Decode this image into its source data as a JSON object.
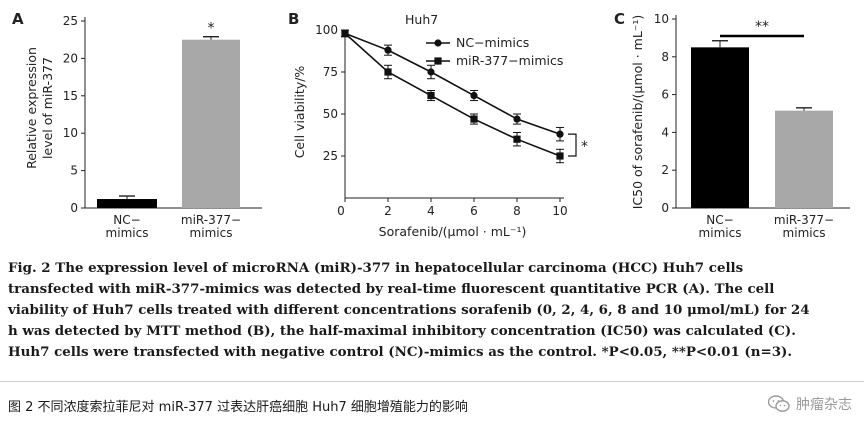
{
  "chart_data": [
    {
      "panel": "A",
      "type": "bar",
      "categories": [
        "NC-mimics",
        "miR-377-mimics"
      ],
      "category_labels": [
        [
          "NC−",
          "mimics"
        ],
        [
          "miR-377−",
          "mimics"
        ]
      ],
      "values": [
        1.2,
        22.5
      ],
      "errors": [
        0.4,
        0.4
      ],
      "colors": [
        "#000000",
        "#a8a8a8"
      ],
      "ylabel": [
        "Relative expression",
        "level of miR-377"
      ],
      "ylim": [
        0,
        25
      ],
      "yticks": [
        0,
        5,
        10,
        15,
        20,
        25
      ],
      "annotation": "*"
    },
    {
      "panel": "B",
      "type": "line",
      "title": "Huh7",
      "xlabel": "Sorafenib/(μmol · mL⁻¹)",
      "ylabel": "Cell viability/%",
      "x": [
        0,
        2,
        4,
        6,
        8,
        10
      ],
      "xticks": [
        0,
        2,
        4,
        6,
        8,
        10
      ],
      "yticks": [
        25,
        50,
        75,
        100
      ],
      "xlim": [
        0,
        10
      ],
      "ylim": [
        0,
        100
      ],
      "series": [
        {
          "name": "NC−mimics",
          "marker": "circle",
          "values": [
            98,
            88,
            75,
            61,
            47,
            38
          ],
          "errors": [
            2,
            3,
            4,
            3,
            3,
            4
          ]
        },
        {
          "name": "miR-377−mimics",
          "marker": "square",
          "values": [
            98,
            75,
            61,
            47,
            35,
            25
          ],
          "errors": [
            2,
            4,
            3,
            3,
            4,
            4
          ]
        }
      ],
      "annotation": "*"
    },
    {
      "panel": "C",
      "type": "bar",
      "categories": [
        "NC-mimics",
        "miR-377-mimics"
      ],
      "category_labels": [
        [
          "NC−",
          "mimics"
        ],
        [
          "miR-377−",
          "mimics"
        ]
      ],
      "values": [
        8.5,
        5.15
      ],
      "errors": [
        0.35,
        0.15
      ],
      "colors": [
        "#000000",
        "#a8a8a8"
      ],
      "ylabel": "IC50 of sorafenib/(μmol · mL⁻¹)",
      "ylim": [
        0,
        10
      ],
      "yticks": [
        0,
        2,
        4,
        6,
        8,
        10
      ],
      "annotation": "**"
    }
  ],
  "caption": {
    "lines": [
      "Fig. 2   The expression level of microRNA (miR)-377 in hepatocellular carcinoma (HCC) Huh7 cells",
      "transfected with miR-377-mimics was detected by real-time fluorescent quantitative PCR (A). The cell",
      "viability of Huh7 cells treated with different concentrations sorafenib (0, 2, 4, 6, 8 and 10 μmol/mL) for 24",
      "h was detected by MTT method (B), the half-maximal inhibitory concentration (IC50) was calculated (C).",
      "Huh7 cells were transfected with negative control (NC)-mimics as the control. *P<0.05, **P<0.01 (n=3)."
    ]
  },
  "cn_caption": "图 2   不同浓度索拉菲尼对 miR-377 过表达肝癌细胞 Huh7 细胞增殖能力的影响",
  "watermark": {
    "icon": "wechat-icon",
    "text": "肿瘤杂志"
  }
}
